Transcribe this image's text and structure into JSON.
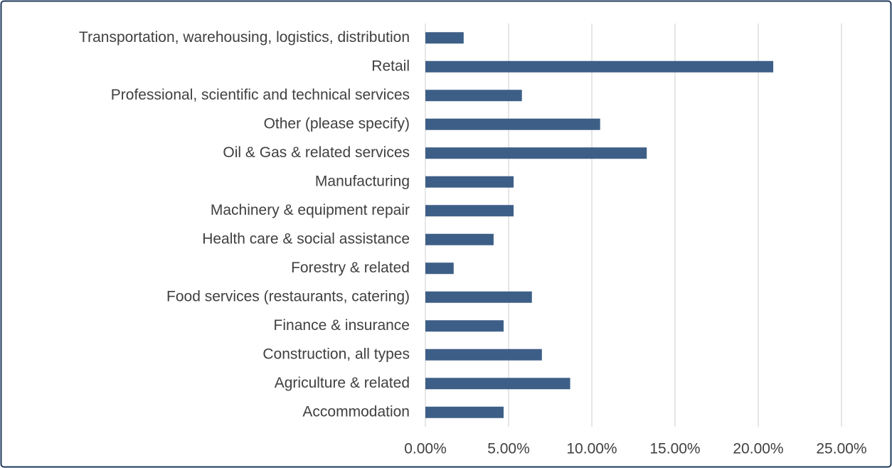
{
  "chart_data": {
    "type": "bar",
    "orientation": "horizontal",
    "categories": [
      "Transportation, warehousing, logistics, distribution",
      "Retail",
      "Professional, scientific and technical services",
      "Other (please specify)",
      "Oil & Gas & related services",
      "Manufacturing",
      "Machinery & equipment repair",
      "Health care & social assistance",
      "Forestry & related",
      "Food services (restaurants, catering)",
      "Finance & insurance",
      "Construction, all types",
      "Agriculture & related",
      "Accommodation"
    ],
    "values": [
      2.3,
      20.9,
      5.8,
      10.5,
      13.3,
      5.3,
      5.3,
      4.1,
      1.7,
      6.4,
      4.7,
      7.0,
      8.7,
      4.7
    ],
    "color": "#3d5f87",
    "xlim": [
      0,
      25
    ],
    "xticks": [
      {
        "value": 0,
        "label": "0.00%"
      },
      {
        "value": 5,
        "label": "5.00%"
      },
      {
        "value": 10,
        "label": "10.00%"
      },
      {
        "value": 15,
        "label": "15.00%"
      },
      {
        "value": 20,
        "label": "20.00%"
      },
      {
        "value": 25,
        "label": "25.00%"
      }
    ],
    "grid": true
  }
}
